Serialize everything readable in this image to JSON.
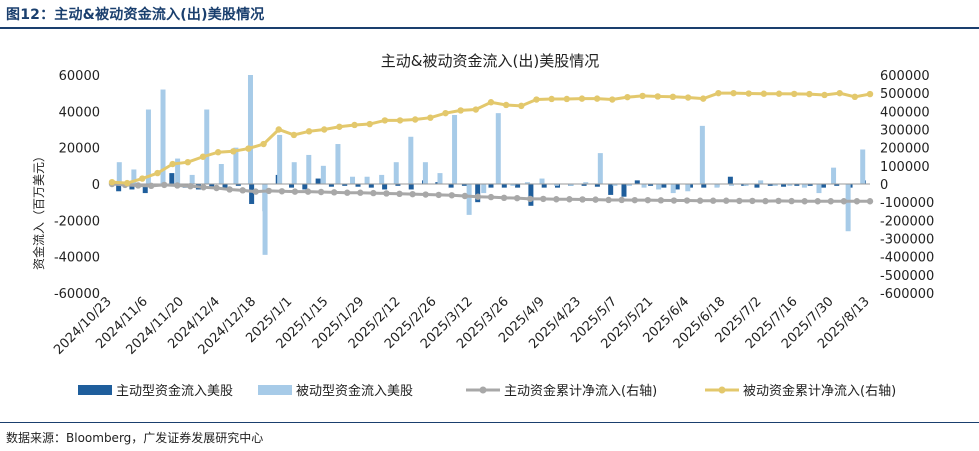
{
  "figure_title": "图12：主动&被动资金流入(出)美股情况",
  "source": "数据来源：Bloomberg，广发证券发展研究中心",
  "colors": {
    "active_bar": "#1f5e9c",
    "passive_bar": "#a7cbe8",
    "active_cum_line": "#a8a8a8",
    "passive_cum_line": "#e3c86c",
    "title_rule": "#1a3f6e"
  },
  "chart_data": {
    "type": "bar+line",
    "title": "主动&被动资金流入(出)美股情况",
    "ylabel": "资金流入（百万美元）",
    "ylim": [
      -60000,
      60000
    ],
    "y_ticks": [
      "60000",
      "40000",
      "20000",
      "0",
      "-20000",
      "-40000",
      "-60000"
    ],
    "y2lim": [
      -600000,
      600000
    ],
    "y2_ticks": [
      "600000",
      "500000",
      "400000",
      "300000",
      "200000",
      "100000",
      "0",
      "-100000",
      "-200000",
      "-300000",
      "-400000",
      "-500000",
      "-600000"
    ],
    "x_tick_labels": [
      "2024/10/23",
      "2024/11/6",
      "2024/11/20",
      "2024/12/4",
      "2024/12/18",
      "2025/1/1",
      "2025/1/15",
      "2025/1/29",
      "2025/2/12",
      "2025/2/26",
      "2025/3/12",
      "2025/3/26",
      "2025/4/9",
      "2025/4/23",
      "2025/5/7",
      "2025/5/21",
      "2025/6/4",
      "2025/6/18",
      "2025/7/2",
      "2025/7/16",
      "2025/7/30",
      "2025/8/13"
    ],
    "series": [
      {
        "name": "主动型资金流入美股",
        "type": "bar",
        "axis": "left",
        "values": [
          -4000,
          -3000,
          -5000,
          -1000,
          6000,
          -2000,
          -3000,
          -2000,
          -3000,
          -1000,
          -11000,
          -15000,
          5000,
          -2000,
          -3000,
          3000,
          -1500,
          -1000,
          -1500,
          -2000,
          -3000,
          -1000,
          -3000,
          2000,
          1000,
          -2000,
          -1000,
          -10000,
          -2000,
          -2000,
          -2000,
          -12000,
          -2000,
          -2000,
          -1000,
          -1000,
          -1500,
          -6000,
          -7000,
          2000,
          -1000,
          -2000,
          -3000,
          -2000,
          -2000,
          -1500,
          4000,
          -1000,
          -2000,
          -1000,
          -1500,
          -1000,
          -1000,
          -2000,
          -1000,
          -2000,
          2000
        ]
      },
      {
        "name": "被动型资金流入美股",
        "type": "bar",
        "axis": "left",
        "values": [
          12000,
          8000,
          41000,
          52000,
          14000,
          5000,
          41000,
          11000,
          20000,
          60000,
          -39000,
          27000,
          12000,
          16000,
          10000,
          22000,
          4000,
          4000,
          5000,
          12000,
          26000,
          12000,
          6000,
          38000,
          -17000,
          -5000,
          39000,
          -1000,
          1000,
          3000,
          -1000,
          -1000,
          1000,
          17000,
          -1000,
          -1000,
          -2000,
          -3000,
          -5000,
          -4000,
          32000,
          -2000,
          -1000,
          -1000,
          2000,
          -1000,
          -1000,
          -2000,
          -5000,
          9000,
          -26000,
          19000
        ]
      },
      {
        "name": "主动资金累计净流入(右轴)",
        "type": "line",
        "axis": "right",
        "values": [
          0,
          -5000,
          -8000,
          -10000,
          -5000,
          -8000,
          -12000,
          -18000,
          -22000,
          -30000,
          -35000,
          -42000,
          -38000,
          -40000,
          -42000,
          -42000,
          -44000,
          -46000,
          -48000,
          -48000,
          -50000,
          -52000,
          -54000,
          -56000,
          -58000,
          -60000,
          -62000,
          -66000,
          -70000,
          -72000,
          -76000,
          -78000,
          -82000,
          -82000,
          -84000,
          -84000,
          -85000,
          -86000,
          -88000,
          -88000,
          -89000,
          -89000,
          -90000,
          -91000,
          -91000,
          -92000,
          -92000,
          -92000,
          -93000,
          -93000,
          -94000,
          -93000,
          -94000,
          -95000,
          -95000,
          -95000,
          -95000,
          -95000,
          -95000
        ]
      },
      {
        "name": "被动资金累计净流入(右轴)",
        "type": "line",
        "axis": "right",
        "values": [
          10000,
          5000,
          30000,
          60000,
          110000,
          120000,
          150000,
          175000,
          180000,
          195000,
          220000,
          300000,
          270000,
          290000,
          300000,
          315000,
          325000,
          330000,
          350000,
          350000,
          355000,
          365000,
          390000,
          405000,
          410000,
          450000,
          435000,
          430000,
          465000,
          468000,
          468000,
          470000,
          470000,
          465000,
          478000,
          485000,
          482000,
          480000,
          476000,
          470000,
          500000,
          500000,
          498000,
          497000,
          497000,
          496000,
          495000,
          490000,
          500000,
          480000,
          495000
        ]
      }
    ],
    "legend_position": "bottom",
    "grid": false
  }
}
